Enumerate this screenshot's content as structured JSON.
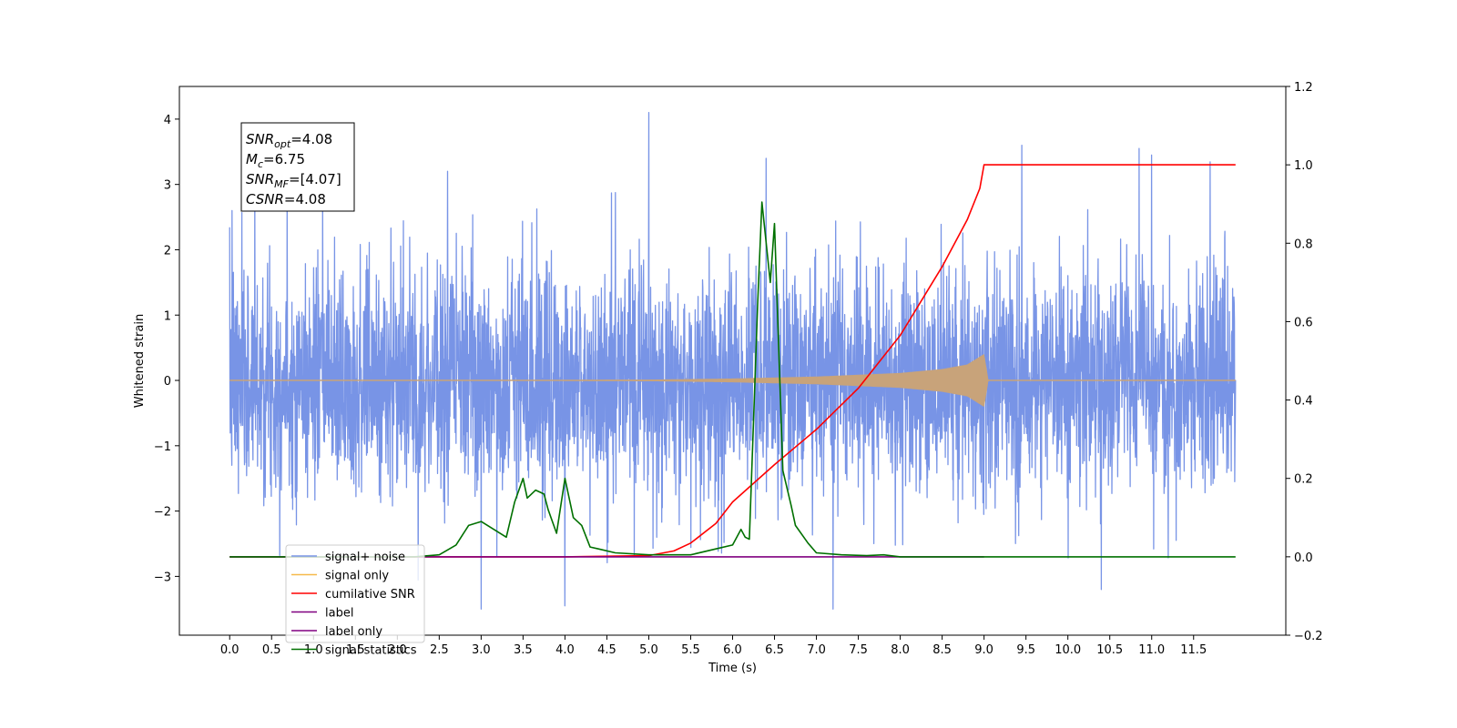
{
  "chart_data": {
    "type": "line",
    "xlabel": "Time (s)",
    "ylabel": "Whitened strain",
    "xlim": [
      -0.6,
      12.6
    ],
    "ylim": [
      -3.9,
      4.5
    ],
    "y2lim": [
      -0.2,
      1.2
    ],
    "x_ticks": [
      "0.0",
      "0.5",
      "1.0",
      "1.5",
      "2.0",
      "2.5",
      "3.0",
      "3.5",
      "4.0",
      "4.5",
      "5.0",
      "5.5",
      "6.0",
      "6.5",
      "7.0",
      "7.5",
      "8.0",
      "8.5",
      "9.0",
      "9.5",
      "10.0",
      "10.5",
      "11.0",
      "11.5"
    ],
    "y_ticks": [
      "−3",
      "−2",
      "−1",
      "0",
      "1",
      "2",
      "3",
      "4"
    ],
    "y2_ticks": [
      "−0.2",
      "0.0",
      "0.2",
      "0.4",
      "0.6",
      "0.8",
      "1.0",
      "1.2"
    ],
    "legend_placement": "lower-left",
    "grid": false,
    "annotations": {
      "snr_opt": {
        "symbol": "SNR",
        "sub": "opt",
        "value": "=4.08"
      },
      "mc": {
        "symbol": "M",
        "sub": "c",
        "value": "=6.75"
      },
      "snr_mf": {
        "symbol": "SNR",
        "sub": "MF",
        "value": "=[4.07]"
      },
      "csnr": {
        "symbol": "CSNR",
        "sub": "",
        "value": "=4.08"
      }
    },
    "series": [
      {
        "name": "signal+ noise",
        "color": "#7894e6",
        "axis": "left",
        "kind": "noise",
        "t_range": [
          0.0,
          12.0
        ],
        "std": 0.85,
        "seed": 7,
        "spikes": [
          [
            0.03,
            2.6
          ],
          [
            0.3,
            3.0
          ],
          [
            2.6,
            3.2
          ],
          [
            3.0,
            -3.5
          ],
          [
            4.0,
            -3.45
          ],
          [
            5.0,
            4.1
          ],
          [
            6.4,
            3.4
          ],
          [
            7.2,
            -3.5
          ],
          [
            9.45,
            3.6
          ],
          [
            10.85,
            3.55
          ],
          [
            11.0,
            3.45
          ],
          [
            10.4,
            -3.2
          ]
        ]
      },
      {
        "name": "signal only",
        "color": "#f6b94a",
        "axis": "left",
        "kind": "chirp",
        "blend_color": "#c8a37a",
        "t_range": [
          0.0,
          12.0
        ],
        "merger_time": 9.0,
        "envelope": [
          [
            0.0,
            0.0
          ],
          [
            4.0,
            0.003
          ],
          [
            5.0,
            0.008
          ],
          [
            6.0,
            0.025
          ],
          [
            7.0,
            0.055
          ],
          [
            8.0,
            0.11
          ],
          [
            8.5,
            0.17
          ],
          [
            8.8,
            0.24
          ],
          [
            9.0,
            0.4
          ],
          [
            9.05,
            0.0
          ],
          [
            12.0,
            0.0
          ]
        ]
      },
      {
        "name": "cumilative SNR",
        "color": "#ff0000",
        "axis": "right",
        "x": [
          0.0,
          4.0,
          5.0,
          5.3,
          5.5,
          5.8,
          6.0,
          6.5,
          7.0,
          7.5,
          8.0,
          8.5,
          8.8,
          8.95,
          9.0,
          12.0
        ],
        "values": [
          0.0,
          0.0,
          0.003,
          0.015,
          0.035,
          0.085,
          0.14,
          0.235,
          0.325,
          0.43,
          0.565,
          0.74,
          0.86,
          0.94,
          1.0,
          1.0
        ]
      },
      {
        "name": "label",
        "color": "#800080",
        "axis": "right",
        "x": [
          0.0,
          9.0
        ],
        "values": [
          0.0,
          0.0
        ]
      },
      {
        "name": "label only",
        "color": "#800080",
        "axis": "right",
        "x": [],
        "values": []
      },
      {
        "name": "signal statistics",
        "color": "#007000",
        "axis": "right",
        "x": [
          0.0,
          2.2,
          2.5,
          2.7,
          2.85,
          3.0,
          3.15,
          3.3,
          3.4,
          3.5,
          3.55,
          3.65,
          3.75,
          3.8,
          3.9,
          4.0,
          4.1,
          4.2,
          4.3,
          4.4,
          4.6,
          5.0,
          5.5,
          5.8,
          6.0,
          6.1,
          6.15,
          6.2,
          6.3,
          6.35,
          6.45,
          6.5,
          6.6,
          6.7,
          6.75,
          6.9,
          7.0,
          7.3,
          7.6,
          7.8,
          8.0,
          9.0,
          12.0
        ],
        "values": [
          0.0,
          0.0,
          0.005,
          0.03,
          0.08,
          0.09,
          0.07,
          0.05,
          0.14,
          0.2,
          0.15,
          0.17,
          0.16,
          0.12,
          0.06,
          0.2,
          0.1,
          0.08,
          0.025,
          0.02,
          0.01,
          0.005,
          0.005,
          0.02,
          0.03,
          0.07,
          0.05,
          0.045,
          0.65,
          0.905,
          0.7,
          0.85,
          0.22,
          0.13,
          0.08,
          0.035,
          0.01,
          0.005,
          0.003,
          0.005,
          0.0,
          0.0,
          0.0
        ]
      }
    ]
  }
}
